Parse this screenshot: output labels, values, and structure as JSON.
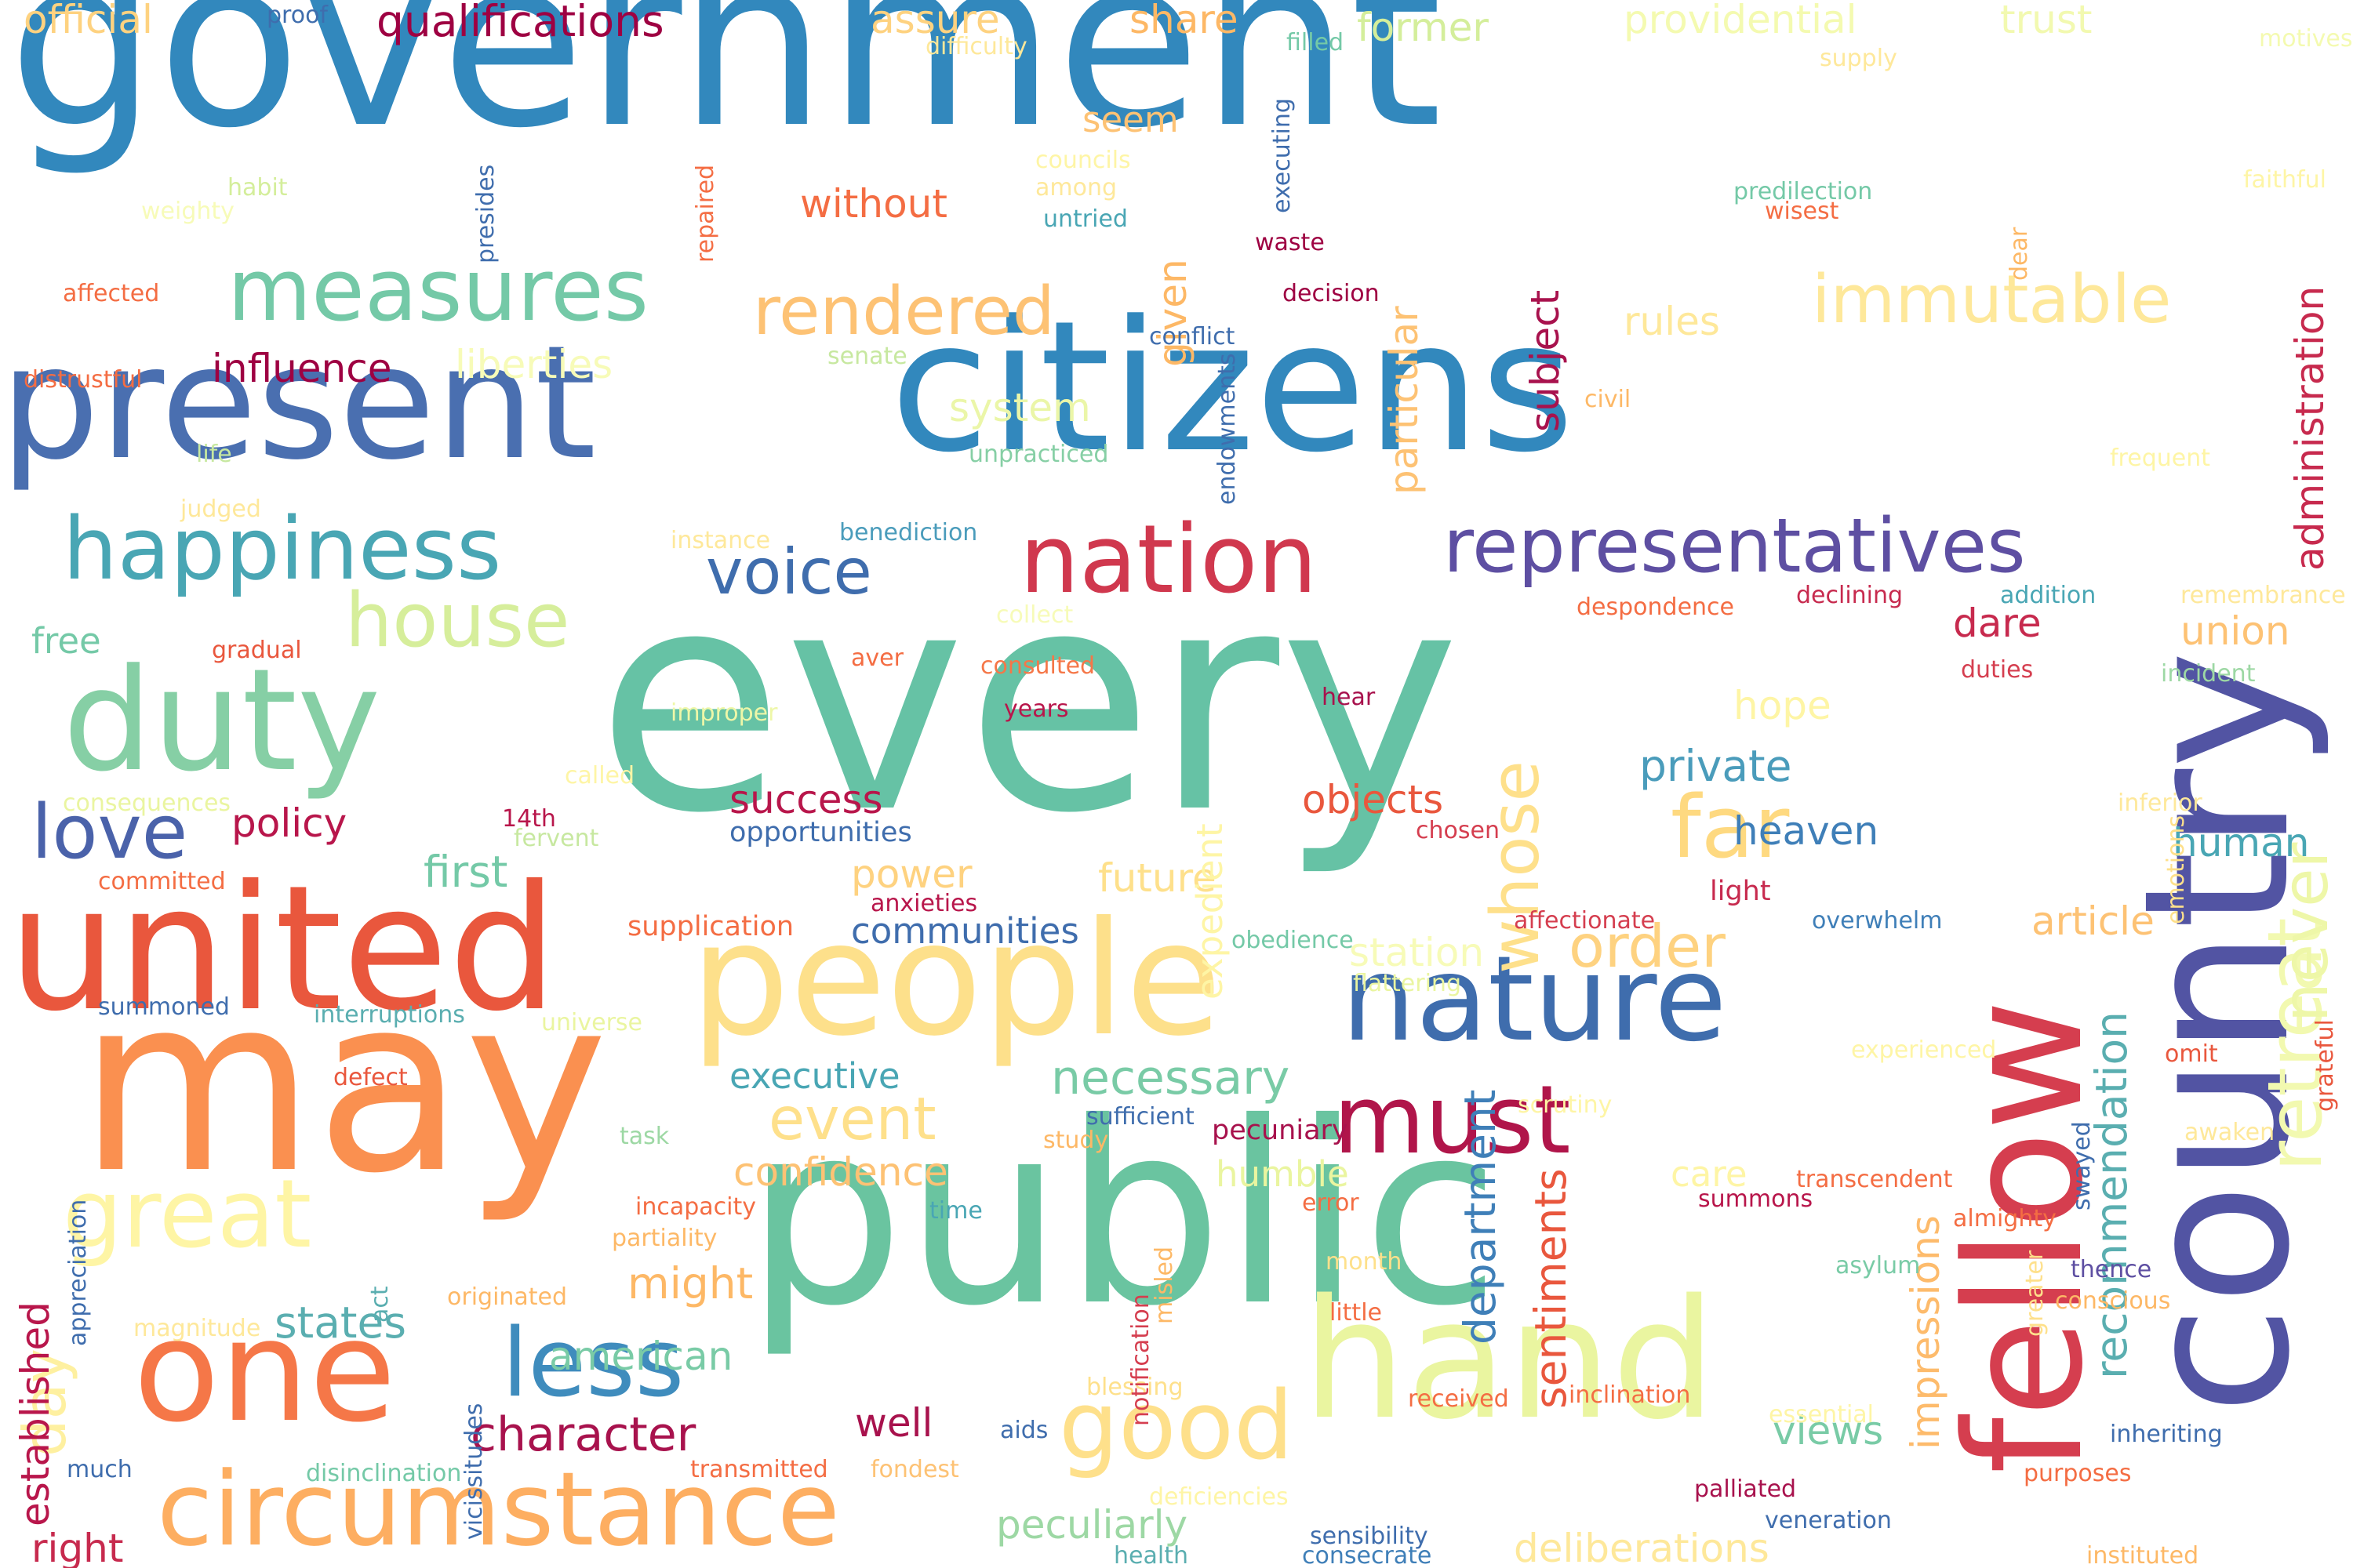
{
  "words": [
    {
      "text": "government",
      "color": "#3288bd",
      "orient": "h"
    },
    {
      "text": "every",
      "color": "#66c2a5",
      "orient": "h"
    },
    {
      "text": "citizens",
      "color": "#3288bd",
      "orient": "h"
    },
    {
      "text": "present",
      "color": "#4a6fb0",
      "orient": "h"
    },
    {
      "text": "public",
      "color": "#6ac4a0",
      "orient": "h"
    },
    {
      "text": "may",
      "color": "#fa9050",
      "orient": "h"
    },
    {
      "text": "country",
      "color": "#5254a3",
      "orient": "v"
    },
    {
      "text": "hand",
      "color": "#eaf5a0",
      "orient": "h"
    },
    {
      "text": "people",
      "color": "#fde08b",
      "orient": "h"
    },
    {
      "text": "united",
      "color": "#e9573d",
      "orient": "h"
    },
    {
      "text": "duty",
      "color": "#86cfa5",
      "orient": "h"
    },
    {
      "text": "one",
      "color": "#f57748",
      "orient": "h"
    },
    {
      "text": "fellow",
      "color": "#d53e4f",
      "orient": "v"
    },
    {
      "text": "nature",
      "color": "#3f6dad",
      "orient": "h"
    },
    {
      "text": "circumstance",
      "color": "#fdae61",
      "orient": "h"
    },
    {
      "text": "measures",
      "color": "#74c9a7",
      "orient": "h"
    },
    {
      "text": "nation",
      "color": "#d0384e",
      "orient": "h"
    },
    {
      "text": "happiness",
      "color": "#49a6b4",
      "orient": "h"
    },
    {
      "text": "representatives",
      "color": "#5e4fa2",
      "orient": "h"
    },
    {
      "text": "great",
      "color": "#fef5a5",
      "orient": "h"
    },
    {
      "text": "good",
      "color": "#fee08b",
      "orient": "h"
    },
    {
      "text": "retreat",
      "color": "#f2f9b0",
      "orient": "v"
    },
    {
      "text": "must",
      "color": "#b0154a",
      "orient": "h"
    },
    {
      "text": "less",
      "color": "#3f8cbd",
      "orient": "h"
    },
    {
      "text": "house",
      "color": "#d6ee9b",
      "orient": "h"
    },
    {
      "text": "far",
      "color": "#fed980",
      "orient": "h"
    },
    {
      "text": "love",
      "color": "#4a62aa",
      "orient": "h"
    },
    {
      "text": "rendered",
      "color": "#fdc274",
      "orient": "h"
    },
    {
      "text": "immutable",
      "color": "#fee89a",
      "orient": "h"
    },
    {
      "text": "whose",
      "color": "#fee08b",
      "orient": "v"
    },
    {
      "text": "never",
      "color": "#eef7a8",
      "orient": "v"
    },
    {
      "text": "voice",
      "color": "#3f6dad",
      "orient": "h"
    },
    {
      "text": "order",
      "color": "#fed280",
      "orient": "h"
    },
    {
      "text": "event",
      "color": "#fee08b",
      "orient": "h"
    },
    {
      "text": "day",
      "color": "#fef0a0",
      "orient": "v"
    },
    {
      "text": "character",
      "color": "#a8124d",
      "orient": "h"
    },
    {
      "text": "qualifications",
      "color": "#9e0142",
      "orient": "h"
    },
    {
      "text": "administration",
      "color": "#c72a4e",
      "orient": "v"
    },
    {
      "text": "influence",
      "color": "#9e0142",
      "orient": "h"
    },
    {
      "text": "policy",
      "color": "#b8164b",
      "orient": "h"
    },
    {
      "text": "necessary",
      "color": "#79cba6",
      "orient": "h"
    },
    {
      "text": "recommendation",
      "color": "#5aaeb0",
      "orient": "v"
    },
    {
      "text": "department",
      "color": "#3f7fb8",
      "orient": "v"
    },
    {
      "text": "sentiments",
      "color": "#e9573d",
      "orient": "v"
    },
    {
      "text": "impressions",
      "color": "#fdbb6c",
      "orient": "v"
    },
    {
      "text": "particular",
      "color": "#fdc274",
      "orient": "v"
    },
    {
      "text": "subject",
      "color": "#a8124d",
      "orient": "v"
    },
    {
      "text": "given",
      "color": "#fdb866",
      "orient": "v"
    },
    {
      "text": "system",
      "color": "#ebf6a8",
      "orient": "h"
    },
    {
      "text": "without",
      "color": "#f46d43",
      "orient": "h"
    },
    {
      "text": "official",
      "color": "#fed280",
      "orient": "h"
    },
    {
      "text": "assure",
      "color": "#fed280",
      "orient": "h"
    },
    {
      "text": "share",
      "color": "#fdb866",
      "orient": "h"
    },
    {
      "text": "former",
      "color": "#d4ee9b",
      "orient": "h"
    },
    {
      "text": "providential",
      "color": "#f4fab0",
      "orient": "h"
    },
    {
      "text": "trust",
      "color": "#f2f9b0",
      "orient": "h"
    },
    {
      "text": "rules",
      "color": "#fee89a",
      "orient": "h"
    },
    {
      "text": "liberties",
      "color": "#f7fbb8",
      "orient": "h"
    },
    {
      "text": "success",
      "color": "#b8164b",
      "orient": "h"
    },
    {
      "text": "objects",
      "color": "#e9573d",
      "orient": "h"
    },
    {
      "text": "private",
      "color": "#4a9cbb",
      "orient": "h"
    },
    {
      "text": "heaven",
      "color": "#3f7fb8",
      "orient": "h"
    },
    {
      "text": "hope",
      "color": "#fef5a5",
      "orient": "h"
    },
    {
      "text": "dare",
      "color": "#c72a4e",
      "orient": "h"
    },
    {
      "text": "union",
      "color": "#fdc274",
      "orient": "h"
    },
    {
      "text": "human",
      "color": "#49a6b4",
      "orient": "h"
    },
    {
      "text": "article",
      "color": "#fdc274",
      "orient": "h"
    },
    {
      "text": "light",
      "color": "#c72a4e",
      "orient": "h"
    },
    {
      "text": "first",
      "color": "#74c9a7",
      "orient": "h"
    },
    {
      "text": "power",
      "color": "#fed280",
      "orient": "h"
    },
    {
      "text": "future",
      "color": "#fee08b",
      "orient": "h"
    },
    {
      "text": "communities",
      "color": "#3f6dad",
      "orient": "h"
    },
    {
      "text": "station",
      "color": "#f7fbb8",
      "orient": "h"
    },
    {
      "text": "executive",
      "color": "#49a6b4",
      "orient": "h"
    },
    {
      "text": "confidence",
      "color": "#fdc274",
      "orient": "h"
    },
    {
      "text": "humble",
      "color": "#eaf5a0",
      "orient": "h"
    },
    {
      "text": "care",
      "color": "#fef5a5",
      "orient": "h"
    },
    {
      "text": "might",
      "color": "#fdb866",
      "orient": "h"
    },
    {
      "text": "states",
      "color": "#5aaeb0",
      "orient": "h"
    },
    {
      "text": "american",
      "color": "#79cba6",
      "orient": "h"
    },
    {
      "text": "well",
      "color": "#a8124d",
      "orient": "h"
    },
    {
      "text": "views",
      "color": "#79cba6",
      "orient": "h"
    },
    {
      "text": "peculiarly",
      "color": "#9dd8a4",
      "orient": "h"
    },
    {
      "text": "right",
      "color": "#c72a4e",
      "orient": "h"
    },
    {
      "text": "deliberations",
      "color": "#fee89a",
      "orient": "h"
    },
    {
      "text": "established",
      "color": "#b8164b",
      "orient": "v"
    },
    {
      "text": "pecuniary",
      "color": "#a8124d",
      "orient": "h"
    },
    {
      "text": "opportunities",
      "color": "#3f6dad",
      "orient": "h"
    },
    {
      "text": "seem",
      "color": "#fdc274",
      "orient": "h"
    },
    {
      "text": "expedient",
      "color": "#fef5a5",
      "orient": "v"
    },
    {
      "text": "supplication",
      "color": "#f46d43",
      "orient": "h"
    },
    {
      "text": "interruptions",
      "color": "#5aaeb0",
      "orient": "h"
    },
    {
      "text": "affected",
      "color": "#f46d43",
      "orient": "h"
    },
    {
      "text": "distrustful",
      "color": "#f46d43",
      "orient": "h"
    },
    {
      "text": "habit",
      "color": "#d4ee9b",
      "orient": "h"
    },
    {
      "text": "weighty",
      "color": "#f7fbb8",
      "orient": "h"
    },
    {
      "text": "life",
      "color": "#c7e8a0",
      "orient": "h"
    },
    {
      "text": "judged",
      "color": "#fee89a",
      "orient": "h"
    },
    {
      "text": "free",
      "color": "#74c9a7",
      "orient": "h"
    },
    {
      "text": "gradual",
      "color": "#e9573d",
      "orient": "h"
    },
    {
      "text": "aver",
      "color": "#f46d43",
      "orient": "h"
    },
    {
      "text": "consulted",
      "color": "#f57748",
      "orient": "h"
    },
    {
      "text": "years",
      "color": "#b8164b",
      "orient": "h"
    },
    {
      "text": "hear",
      "color": "#a8124d",
      "orient": "h"
    },
    {
      "text": "improper",
      "color": "#eef7a8",
      "orient": "h"
    },
    {
      "text": "instance",
      "color": "#fee89a",
      "orient": "h"
    },
    {
      "text": "benediction",
      "color": "#4a9cbb",
      "orient": "h"
    },
    {
      "text": "unpracticed",
      "color": "#86cfa5",
      "orient": "h"
    },
    {
      "text": "senate",
      "color": "#c7e8a0",
      "orient": "h"
    },
    {
      "text": "conflict",
      "color": "#3f6dad",
      "orient": "h"
    },
    {
      "text": "decision",
      "color": "#9e0142",
      "orient": "h"
    },
    {
      "text": "waste",
      "color": "#9e0142",
      "orient": "h"
    },
    {
      "text": "executing",
      "color": "#3f6dad",
      "orient": "v"
    },
    {
      "text": "endowments",
      "color": "#3f6dad",
      "orient": "v"
    },
    {
      "text": "civil",
      "color": "#fdb866",
      "orient": "h"
    },
    {
      "text": "predilection",
      "color": "#74c9a7",
      "orient": "h"
    },
    {
      "text": "wisest",
      "color": "#f46d43",
      "orient": "h"
    },
    {
      "text": "dear",
      "color": "#fdb866",
      "orient": "v"
    },
    {
      "text": "supply",
      "color": "#fee89a",
      "orient": "h"
    },
    {
      "text": "motives",
      "color": "#f4fab0",
      "orient": "h"
    },
    {
      "text": "faithful",
      "color": "#fef5a5",
      "orient": "h"
    },
    {
      "text": "frequent",
      "color": "#fef5a5",
      "orient": "h"
    },
    {
      "text": "remembrance",
      "color": "#fee89a",
      "orient": "h"
    },
    {
      "text": "addition",
      "color": "#49a6b4",
      "orient": "h"
    },
    {
      "text": "declining",
      "color": "#c72a4e",
      "orient": "h"
    },
    {
      "text": "despondence",
      "color": "#f46d43",
      "orient": "h"
    },
    {
      "text": "collect",
      "color": "#f7fbb8",
      "orient": "h"
    },
    {
      "text": "incident",
      "color": "#9dd8a4",
      "orient": "h"
    },
    {
      "text": "duties",
      "color": "#d53e4f",
      "orient": "h"
    },
    {
      "text": "inferior",
      "color": "#fee89a",
      "orient": "h"
    },
    {
      "text": "emotions",
      "color": "#fee08b",
      "orient": "v"
    },
    {
      "text": "chosen",
      "color": "#d53e4f",
      "orient": "h"
    },
    {
      "text": "affectionate",
      "color": "#d53e4f",
      "orient": "h"
    },
    {
      "text": "overwhelm",
      "color": "#3f7fb8",
      "orient": "h"
    },
    {
      "text": "obedience",
      "color": "#74c9a7",
      "orient": "h"
    },
    {
      "text": "flattering",
      "color": "#eaf5a0",
      "orient": "h"
    },
    {
      "text": "experienced",
      "color": "#fef5a5",
      "orient": "h"
    },
    {
      "text": "omit",
      "color": "#e9573d",
      "orient": "h"
    },
    {
      "text": "grateful",
      "color": "#e9573d",
      "orient": "v"
    },
    {
      "text": "awaken",
      "color": "#fee89a",
      "orient": "h"
    },
    {
      "text": "scrutiny",
      "color": "#fef5a5",
      "orient": "h"
    },
    {
      "text": "swayed",
      "color": "#3f6dad",
      "orient": "v"
    },
    {
      "text": "transcendent",
      "color": "#f46d43",
      "orient": "h"
    },
    {
      "text": "almighty",
      "color": "#f46d43",
      "orient": "h"
    },
    {
      "text": "summons",
      "color": "#b8164b",
      "orient": "h"
    },
    {
      "text": "thence",
      "color": "#5e4fa2",
      "orient": "h"
    },
    {
      "text": "conscious",
      "color": "#fdb866",
      "orient": "h"
    },
    {
      "text": "asylum",
      "color": "#79cba6",
      "orient": "h"
    },
    {
      "text": "greater",
      "color": "#fee08b",
      "orient": "v"
    },
    {
      "text": "inclination",
      "color": "#f46d43",
      "orient": "h"
    },
    {
      "text": "received",
      "color": "#f46d43",
      "orient": "h"
    },
    {
      "text": "essential",
      "color": "#fef5a5",
      "orient": "h"
    },
    {
      "text": "inheriting",
      "color": "#3f6dad",
      "orient": "h"
    },
    {
      "text": "purposes",
      "color": "#f46d43",
      "orient": "h"
    },
    {
      "text": "palliated",
      "color": "#a8124d",
      "orient": "h"
    },
    {
      "text": "veneration",
      "color": "#3f6dad",
      "orient": "h"
    },
    {
      "text": "instituted",
      "color": "#fdb866",
      "orient": "h"
    },
    {
      "text": "sensibility",
      "color": "#3f6dad",
      "orient": "h"
    },
    {
      "text": "consecrate",
      "color": "#3f7fb8",
      "orient": "h"
    },
    {
      "text": "health",
      "color": "#5aaeb0",
      "orient": "h"
    },
    {
      "text": "deficiencies",
      "color": "#fef5a5",
      "orient": "h"
    },
    {
      "text": "fondest",
      "color": "#fdc274",
      "orient": "h"
    },
    {
      "text": "transmitted",
      "color": "#f46d43",
      "orient": "h"
    },
    {
      "text": "aids",
      "color": "#3f6dad",
      "orient": "h"
    },
    {
      "text": "disinclination",
      "color": "#74c9a7",
      "orient": "h"
    },
    {
      "text": "blessing",
      "color": "#fee08b",
      "orient": "h"
    },
    {
      "text": "little",
      "color": "#f46d43",
      "orient": "h"
    },
    {
      "text": "month",
      "color": "#fee08b",
      "orient": "h"
    },
    {
      "text": "error",
      "color": "#f46d43",
      "orient": "h"
    },
    {
      "text": "notification",
      "color": "#d53e4f",
      "orient": "v"
    },
    {
      "text": "misled",
      "color": "#fdb866",
      "orient": "v"
    },
    {
      "text": "study",
      "color": "#fdb866",
      "orient": "h"
    },
    {
      "text": "sufficient",
      "color": "#3f6dad",
      "orient": "h"
    },
    {
      "text": "time",
      "color": "#49a6b4",
      "orient": "h"
    },
    {
      "text": "incapacity",
      "color": "#f46d43",
      "orient": "h"
    },
    {
      "text": "partiality",
      "color": "#fdb866",
      "orient": "h"
    },
    {
      "text": "originated",
      "color": "#fdb866",
      "orient": "h"
    },
    {
      "text": "magnitude",
      "color": "#fee89a",
      "orient": "h"
    },
    {
      "text": "act",
      "color": "#5aaeb0",
      "orient": "v"
    },
    {
      "text": "vicissitudes",
      "color": "#3f6dad",
      "orient": "v"
    },
    {
      "text": "task",
      "color": "#9dd8a4",
      "orient": "h"
    },
    {
      "text": "appreciation",
      "color": "#3f6dad",
      "orient": "v"
    },
    {
      "text": "defect",
      "color": "#e9573d",
      "orient": "h"
    },
    {
      "text": "universe",
      "color": "#eaf5a0",
      "orient": "h"
    },
    {
      "text": "summoned",
      "color": "#3f6dad",
      "orient": "h"
    },
    {
      "text": "committed",
      "color": "#f46d43",
      "orient": "h"
    },
    {
      "text": "consequences",
      "color": "#eaf5a0",
      "orient": "h"
    },
    {
      "text": "called",
      "color": "#fef5a5",
      "orient": "h"
    },
    {
      "text": "14th",
      "color": "#b8164b",
      "orient": "h"
    },
    {
      "text": "fervent",
      "color": "#c7e8a0",
      "orient": "h"
    },
    {
      "text": "anxieties",
      "color": "#b8164b",
      "orient": "h"
    },
    {
      "text": "much",
      "color": "#3f6dad",
      "orient": "h"
    },
    {
      "text": "proof",
      "color": "#3f6dad",
      "orient": "h"
    },
    {
      "text": "difficulty",
      "color": "#fee89a",
      "orient": "h"
    },
    {
      "text": "filled",
      "color": "#74c9a7",
      "orient": "h"
    },
    {
      "text": "councils",
      "color": "#fef5a5",
      "orient": "h"
    },
    {
      "text": "among",
      "color": "#fee89a",
      "orient": "h"
    },
    {
      "text": "untried",
      "color": "#49a6b4",
      "orient": "h"
    },
    {
      "text": "presides",
      "color": "#3f6dad",
      "orient": "v"
    },
    {
      "text": "repaired",
      "color": "#f46d43",
      "orient": "v"
    }
  ]
}
